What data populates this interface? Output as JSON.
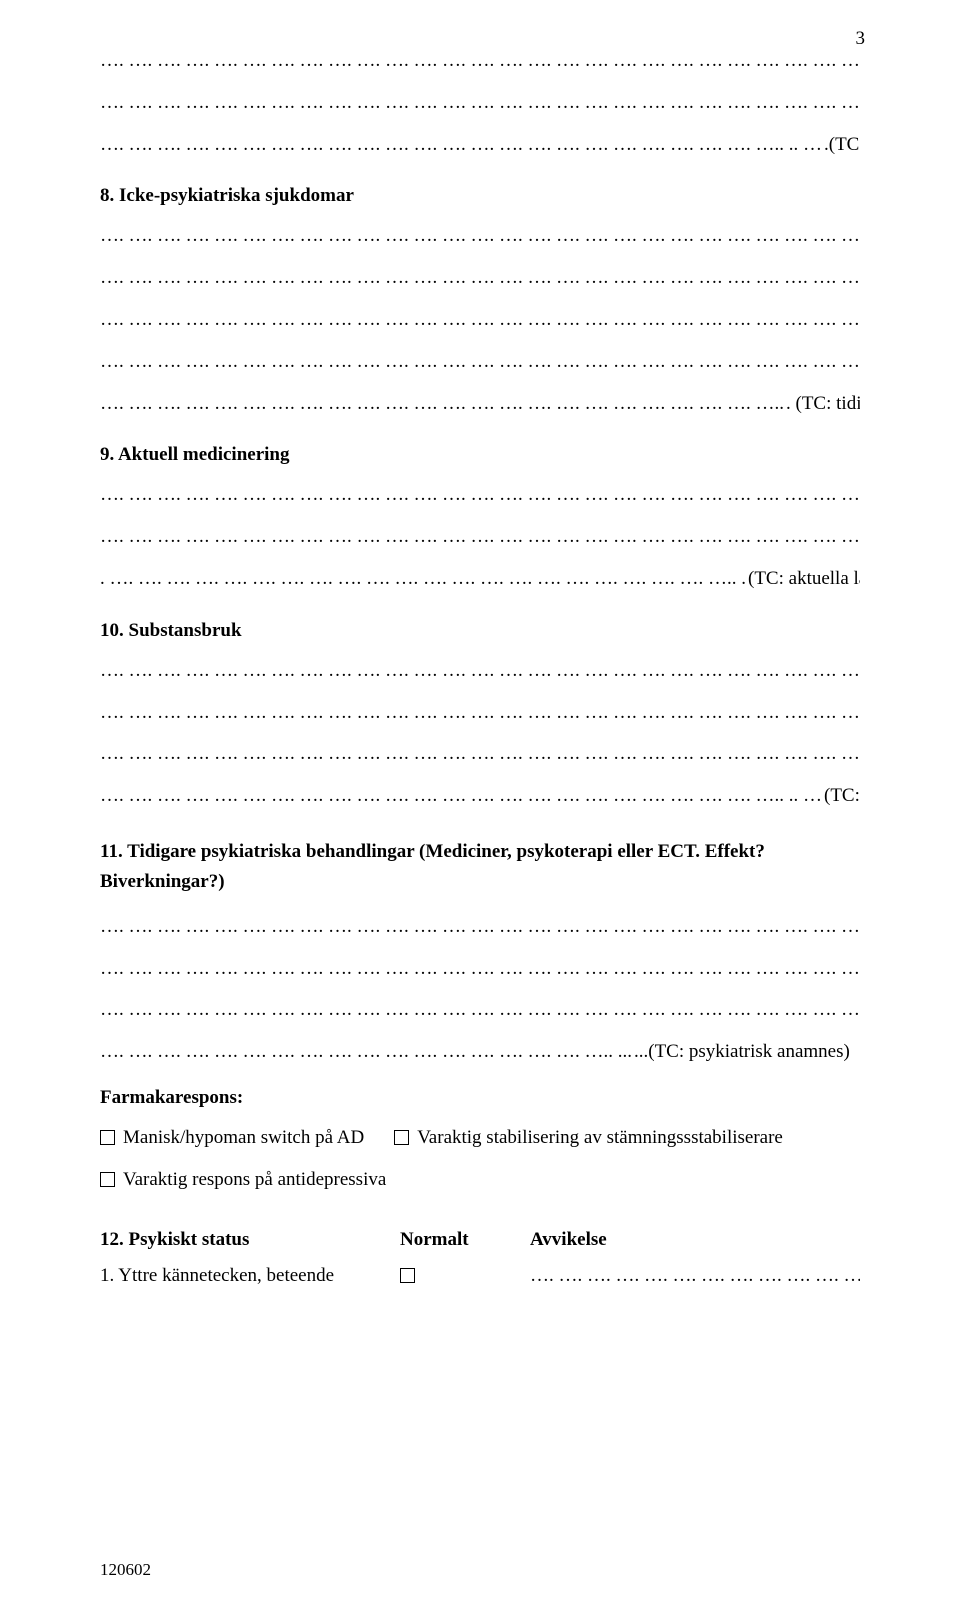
{
  "page_number": "3",
  "footer_code": "120602",
  "dot_pattern": "…. …. …. …. …. …. …. …. …. …. …. …. …. …. …. …. …. …. …. …. …. …. …. …. …. …. ….. ….",
  "dot_pattern_short": "…. …. …. …. …. …. …. …. …. …. …. …. …. …. …. …. …. …. …. …. …. …. …. …..",
  "dot_pattern_mid": "…. …. …. …. …. …. …. …. …. …. …. …. …. …. …. …. …. …. …. …. …. …. …. ….. .. …",
  "dot_pattern_anam": "…. …. …. …. …. …. …. …. …. …. …. …. …. …. …. …. …. ….. ... ",
  "dot_pattern_med": ". …. …. …. …. …. …. …. …. …. …. …. …. …. …. …. …. …. …. …. …. …. ….. . ",
  "trail_dots": "…. …. …. …. …. …. …. …. …. …. …. …. ….. …..",
  "blocks": {
    "top": {
      "lines": 3,
      "label": ".(TC: socialt)"
    },
    "s8": {
      "heading": "8. Icke-psykiatriska sjukdomar",
      "lines": 4,
      "label": ". (TC: tidigare sjukdomar)"
    },
    "s9": {
      "heading": "9. Aktuell medicinering",
      "lines": 2,
      "label": " (TC: aktuella läkemedel)"
    },
    "s10": {
      "heading": "10. Substansbruk",
      "lines": 3,
      "label": " (TC: beroende)"
    },
    "s11": {
      "heading": "11. Tidigare psykiatriska behandlingar (Mediciner, psykoterapi eller ECT. Effekt? Biverkningar?)",
      "lines": 3,
      "label": "...(TC: psykiatrisk anamnes)"
    }
  },
  "farmakarespons": {
    "label": "Farmakarespons:",
    "opt1": "Manisk/hypoman switch på AD",
    "opt2": "Varaktig stabilisering av stämningssstabiliserare",
    "opt3": "Varaktig respons på antidepressiva"
  },
  "s12": {
    "heading_num": "12. Psykiskt status",
    "col_normal": "Normalt",
    "col_avvik": "Avvikelse",
    "row1": "1. Yttre kännetecken, beteende"
  }
}
